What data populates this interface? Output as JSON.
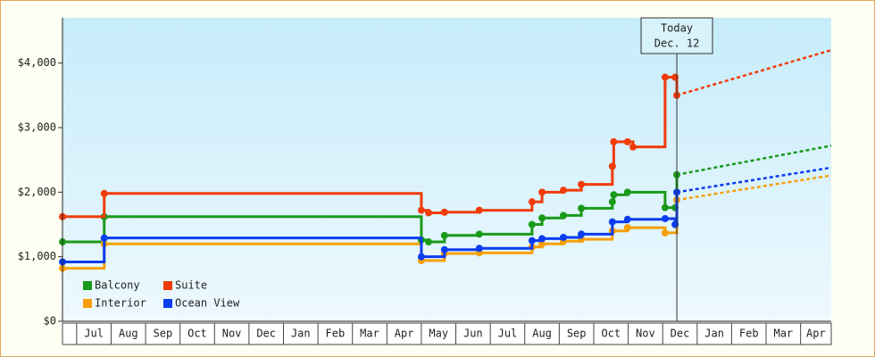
{
  "chart_data": {
    "type": "step",
    "xlim": [
      -0.41,
      21.89
    ],
    "xticks": [
      {
        "value": 0,
        "label": "Jul"
      },
      {
        "value": 1,
        "label": "Aug"
      },
      {
        "value": 2,
        "label": "Sep"
      },
      {
        "value": 3,
        "label": "Oct"
      },
      {
        "value": 4,
        "label": "Nov"
      },
      {
        "value": 5,
        "label": "Dec"
      },
      {
        "value": 6,
        "label": "Jan"
      },
      {
        "value": 7,
        "label": "Feb"
      },
      {
        "value": 8,
        "label": "Mar"
      },
      {
        "value": 9,
        "label": "Apr"
      },
      {
        "value": 10,
        "label": "May"
      },
      {
        "value": 11,
        "label": "Jun"
      },
      {
        "value": 12,
        "label": "Jul"
      },
      {
        "value": 13,
        "label": "Aug"
      },
      {
        "value": 14,
        "label": "Sep"
      },
      {
        "value": 15,
        "label": "Oct"
      },
      {
        "value": 16,
        "label": "Nov"
      },
      {
        "value": 17,
        "label": "Dec"
      },
      {
        "value": 18,
        "label": "Jan"
      },
      {
        "value": 19,
        "label": "Feb"
      },
      {
        "value": 20,
        "label": "Mar"
      },
      {
        "value": 21,
        "label": "Apr"
      }
    ],
    "ylim": [
      0,
      4700
    ],
    "yticks": [
      {
        "value": 0,
        "label": "$0"
      },
      {
        "value": 1000,
        "label": "$1,000"
      },
      {
        "value": 2000,
        "label": "$2,000"
      },
      {
        "value": 3000,
        "label": "$3,000"
      },
      {
        "value": 4000,
        "label": "$4,000"
      }
    ],
    "today": {
      "x": 17.41,
      "label": [
        "Today",
        "Dec. 12"
      ]
    },
    "series": [
      {
        "name": "Balcony",
        "color": "#1a9a1a",
        "x": [
          -0.41,
          0.8,
          10.0,
          10.21,
          10.67,
          11.68,
          13.21,
          13.5,
          14.12,
          14.64,
          15.54,
          15.58,
          15.98,
          17.07,
          17.36,
          17.41
        ],
        "values": [
          1230,
          1620,
          1260,
          1230,
          1330,
          1350,
          1500,
          1600,
          1640,
          1750,
          1850,
          1960,
          2000,
          1760,
          1760,
          2270
        ],
        "forecast": {
          "x": [
            17.41,
            21.89
          ],
          "values": [
            2270,
            2720
          ]
        }
      },
      {
        "name": "Suite",
        "color": "#f03c0a",
        "x": [
          -0.41,
          0.8,
          10.0,
          10.21,
          10.67,
          11.68,
          13.21,
          13.5,
          14.12,
          14.64,
          15.54,
          15.58,
          15.98,
          16.14,
          17.07,
          17.36,
          17.41
        ],
        "values": [
          1620,
          1980,
          1720,
          1680,
          1690,
          1720,
          1850,
          2000,
          2030,
          2120,
          2400,
          2780,
          2780,
          2700,
          3780,
          3780,
          3500
        ],
        "forecast": {
          "x": [
            17.41,
            21.89
          ],
          "values": [
            3500,
            4200
          ]
        }
      },
      {
        "name": "Interior",
        "color": "#f5a00a",
        "x": [
          -0.41,
          0.8,
          10.0,
          10.67,
          11.68,
          13.21,
          13.5,
          14.12,
          14.64,
          15.54,
          15.98,
          17.07,
          17.41
        ],
        "values": [
          820,
          1200,
          940,
          1050,
          1060,
          1150,
          1200,
          1240,
          1270,
          1400,
          1450,
          1370,
          1880
        ],
        "forecast": {
          "x": [
            17.41,
            21.89
          ],
          "values": [
            1880,
            2260
          ]
        }
      },
      {
        "name": "Ocean View",
        "color": "#0a3cf0",
        "x": [
          -0.41,
          0.8,
          10.0,
          10.67,
          11.68,
          13.21,
          13.5,
          14.12,
          14.64,
          15.54,
          15.98,
          17.07,
          17.36,
          17.41
        ],
        "values": [
          920,
          1290,
          1000,
          1110,
          1130,
          1250,
          1280,
          1300,
          1350,
          1540,
          1580,
          1590,
          1500,
          2000
        ],
        "forecast": {
          "x": [
            17.41,
            21.89
          ],
          "values": [
            2000,
            2380
          ]
        }
      }
    ]
  }
}
